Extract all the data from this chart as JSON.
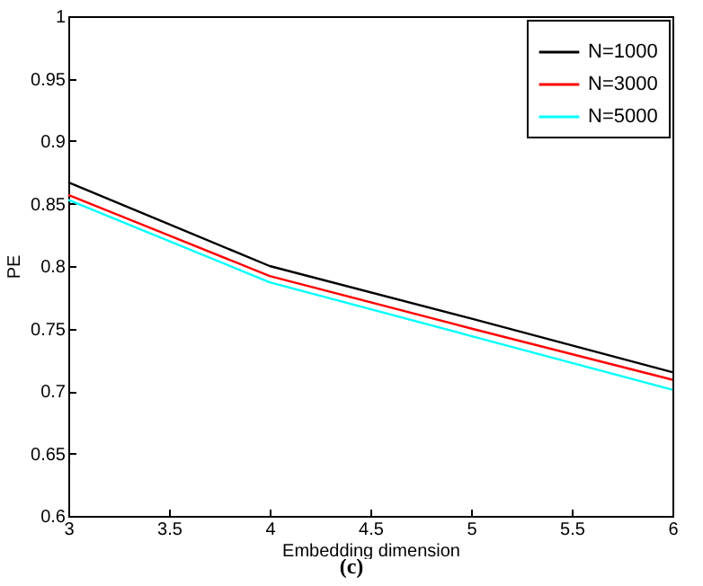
{
  "chart_data": {
    "type": "line",
    "xlabel": "Embedding dimension",
    "ylabel": "PE",
    "x": [
      3,
      4,
      5,
      6
    ],
    "series": [
      {
        "name": "N=1000",
        "color": "#000000",
        "values": [
          0.867,
          0.8,
          0.758,
          0.715
        ]
      },
      {
        "name": "N=3000",
        "color": "#ff0000",
        "values": [
          0.857,
          0.792,
          0.75,
          0.709
        ]
      },
      {
        "name": "N=5000",
        "color": "#00ffff",
        "values": [
          0.853,
          0.787,
          0.744,
          0.701
        ]
      }
    ],
    "xlim": [
      3,
      6
    ],
    "xticks": [
      3,
      3.5,
      4,
      4.5,
      5,
      5.5,
      6
    ],
    "ylim": [
      0.6,
      1
    ],
    "yticks": [
      0.6,
      0.65,
      0.7,
      0.75,
      0.8,
      0.85,
      0.9,
      0.95,
      1
    ],
    "grid": false,
    "legend": "top right",
    "marker": "none",
    "line_style": "solid",
    "annotations": [
      "(c)"
    ]
  }
}
